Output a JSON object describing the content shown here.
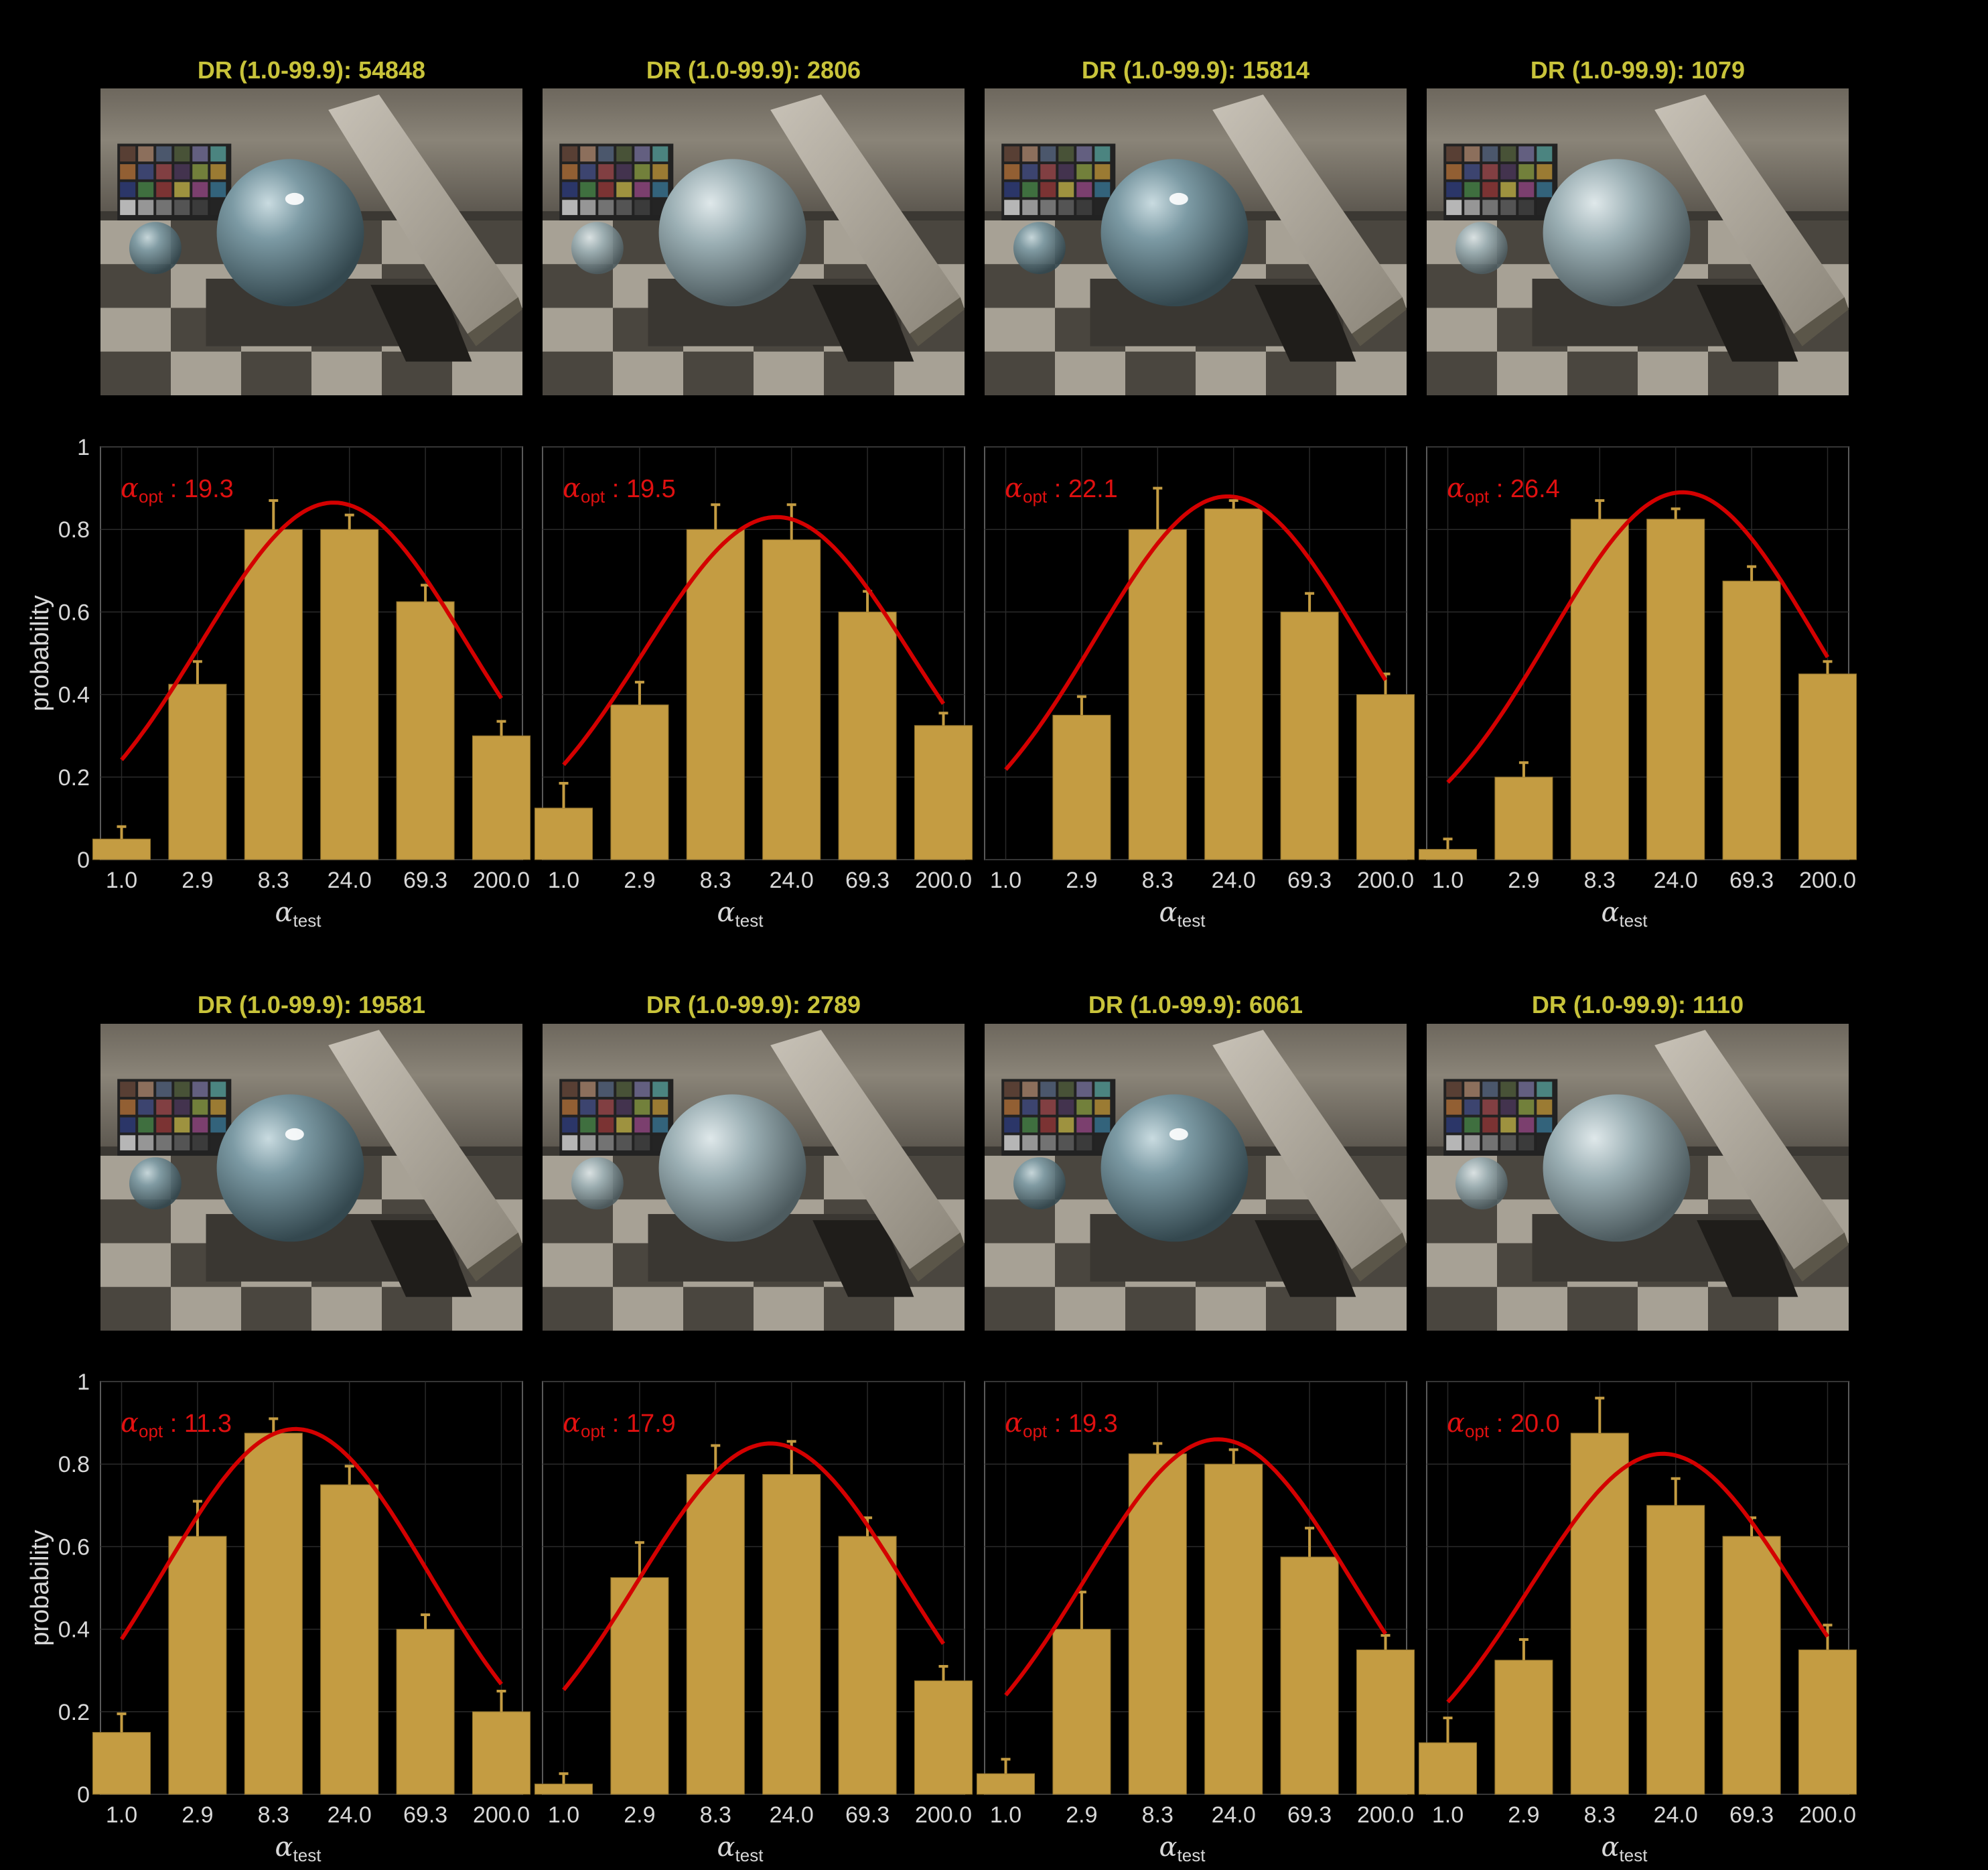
{
  "colors": {
    "background": "#000000",
    "title": "#c8c33a",
    "bar": "#c49c42",
    "fit_curve": "#d40000",
    "axis_text": "#d8d8d8"
  },
  "chart_data": [
    {
      "type": "bar",
      "title": "DR (1.0-99.9): 54848",
      "alpha_opt_label": "opt",
      "alpha_opt": "19.3",
      "categories": [
        "1.0",
        "2.9",
        "8.3",
        "24.0",
        "69.3",
        "200.0"
      ],
      "values": [
        0.05,
        0.425,
        0.8,
        0.8,
        0.625,
        0.3
      ],
      "error_upper": [
        0.08,
        0.48,
        0.87,
        0.835,
        0.665,
        0.335
      ],
      "fit_peak": 0.865,
      "ylim": [
        0,
        1
      ],
      "yticks": [
        "0",
        "0.2",
        "0.4",
        "0.6",
        "0.8",
        "1"
      ],
      "ylabel": "probability",
      "xlabel": "α",
      "xlabel_sub": "test"
    },
    {
      "type": "bar",
      "title": "DR (1.0-99.9): 2806",
      "alpha_opt_label": "opt",
      "alpha_opt": "19.5",
      "categories": [
        "1.0",
        "2.9",
        "8.3",
        "24.0",
        "69.3",
        "200.0"
      ],
      "values": [
        0.125,
        0.375,
        0.8,
        0.775,
        0.6,
        0.325
      ],
      "error_upper": [
        0.185,
        0.43,
        0.86,
        0.86,
        0.65,
        0.355
      ],
      "fit_peak": 0.83,
      "ylim": [
        0,
        1
      ],
      "yticks": [
        "0",
        "0.2",
        "0.4",
        "0.6",
        "0.8",
        "1"
      ],
      "ylabel": "",
      "xlabel": "α",
      "xlabel_sub": "test"
    },
    {
      "type": "bar",
      "title": "DR (1.0-99.9): 15814",
      "alpha_opt_label": "opt",
      "alpha_opt": "22.1",
      "categories": [
        "1.0",
        "2.9",
        "8.3",
        "24.0",
        "69.3",
        "200.0"
      ],
      "values": [
        0.0,
        0.35,
        0.8,
        0.85,
        0.6,
        0.4
      ],
      "error_upper": [
        0.0,
        0.395,
        0.9,
        0.87,
        0.645,
        0.45
      ],
      "fit_peak": 0.88,
      "ylim": [
        0,
        1
      ],
      "yticks": [
        "0",
        "0.2",
        "0.4",
        "0.6",
        "0.8",
        "1"
      ],
      "ylabel": "",
      "xlabel": "α",
      "xlabel_sub": "test"
    },
    {
      "type": "bar",
      "title": "DR (1.0-99.9): 1079",
      "alpha_opt_label": "opt",
      "alpha_opt": "26.4",
      "categories": [
        "1.0",
        "2.9",
        "8.3",
        "24.0",
        "69.3",
        "200.0"
      ],
      "values": [
        0.025,
        0.2,
        0.825,
        0.825,
        0.675,
        0.45
      ],
      "error_upper": [
        0.05,
        0.235,
        0.87,
        0.85,
        0.71,
        0.48
      ],
      "fit_peak": 0.89,
      "ylim": [
        0,
        1
      ],
      "yticks": [
        "0",
        "0.2",
        "0.4",
        "0.6",
        "0.8",
        "1"
      ],
      "ylabel": "",
      "xlabel": "α",
      "xlabel_sub": "test"
    },
    {
      "type": "bar",
      "title": "DR (1.0-99.9): 19581",
      "alpha_opt_label": "opt",
      "alpha_opt": "11.3",
      "categories": [
        "1.0",
        "2.9",
        "8.3",
        "24.0",
        "69.3",
        "200.0"
      ],
      "values": [
        0.15,
        0.625,
        0.875,
        0.75,
        0.4,
        0.2
      ],
      "error_upper": [
        0.195,
        0.71,
        0.91,
        0.795,
        0.435,
        0.25
      ],
      "fit_peak": 0.885,
      "ylim": [
        0,
        1
      ],
      "yticks": [
        "0",
        "0.2",
        "0.4",
        "0.6",
        "0.8",
        "1"
      ],
      "ylabel": "probability",
      "xlabel": "α",
      "xlabel_sub": "test"
    },
    {
      "type": "bar",
      "title": "DR (1.0-99.9): 2789",
      "alpha_opt_label": "opt",
      "alpha_opt": "17.9",
      "categories": [
        "1.0",
        "2.9",
        "8.3",
        "24.0",
        "69.3",
        "200.0"
      ],
      "values": [
        0.025,
        0.525,
        0.775,
        0.775,
        0.625,
        0.275
      ],
      "error_upper": [
        0.05,
        0.61,
        0.845,
        0.855,
        0.67,
        0.31
      ],
      "fit_peak": 0.85,
      "ylim": [
        0,
        1
      ],
      "yticks": [
        "0",
        "0.2",
        "0.4",
        "0.6",
        "0.8",
        "1"
      ],
      "ylabel": "",
      "xlabel": "α",
      "xlabel_sub": "test"
    },
    {
      "type": "bar",
      "title": "DR (1.0-99.9): 6061",
      "alpha_opt_label": "opt",
      "alpha_opt": "19.3",
      "categories": [
        "1.0",
        "2.9",
        "8.3",
        "24.0",
        "69.3",
        "200.0"
      ],
      "values": [
        0.05,
        0.4,
        0.825,
        0.8,
        0.575,
        0.35
      ],
      "error_upper": [
        0.085,
        0.49,
        0.85,
        0.835,
        0.645,
        0.385
      ],
      "fit_peak": 0.86,
      "ylim": [
        0,
        1
      ],
      "yticks": [
        "0",
        "0.2",
        "0.4",
        "0.6",
        "0.8",
        "1"
      ],
      "ylabel": "",
      "xlabel": "α",
      "xlabel_sub": "test"
    },
    {
      "type": "bar",
      "title": "DR (1.0-99.9): 1110",
      "alpha_opt_label": "opt",
      "alpha_opt": "20.0",
      "categories": [
        "1.0",
        "2.9",
        "8.3",
        "24.0",
        "69.3",
        "200.0"
      ],
      "values": [
        0.125,
        0.325,
        0.875,
        0.7,
        0.625,
        0.35
      ],
      "error_upper": [
        0.185,
        0.375,
        0.96,
        0.765,
        0.67,
        0.41
      ],
      "fit_peak": 0.825,
      "ylim": [
        0,
        1
      ],
      "yticks": [
        "0",
        "0.2",
        "0.4",
        "0.6",
        "0.8",
        "1"
      ],
      "ylabel": "",
      "xlabel": "α",
      "xlabel_sub": "test"
    }
  ]
}
